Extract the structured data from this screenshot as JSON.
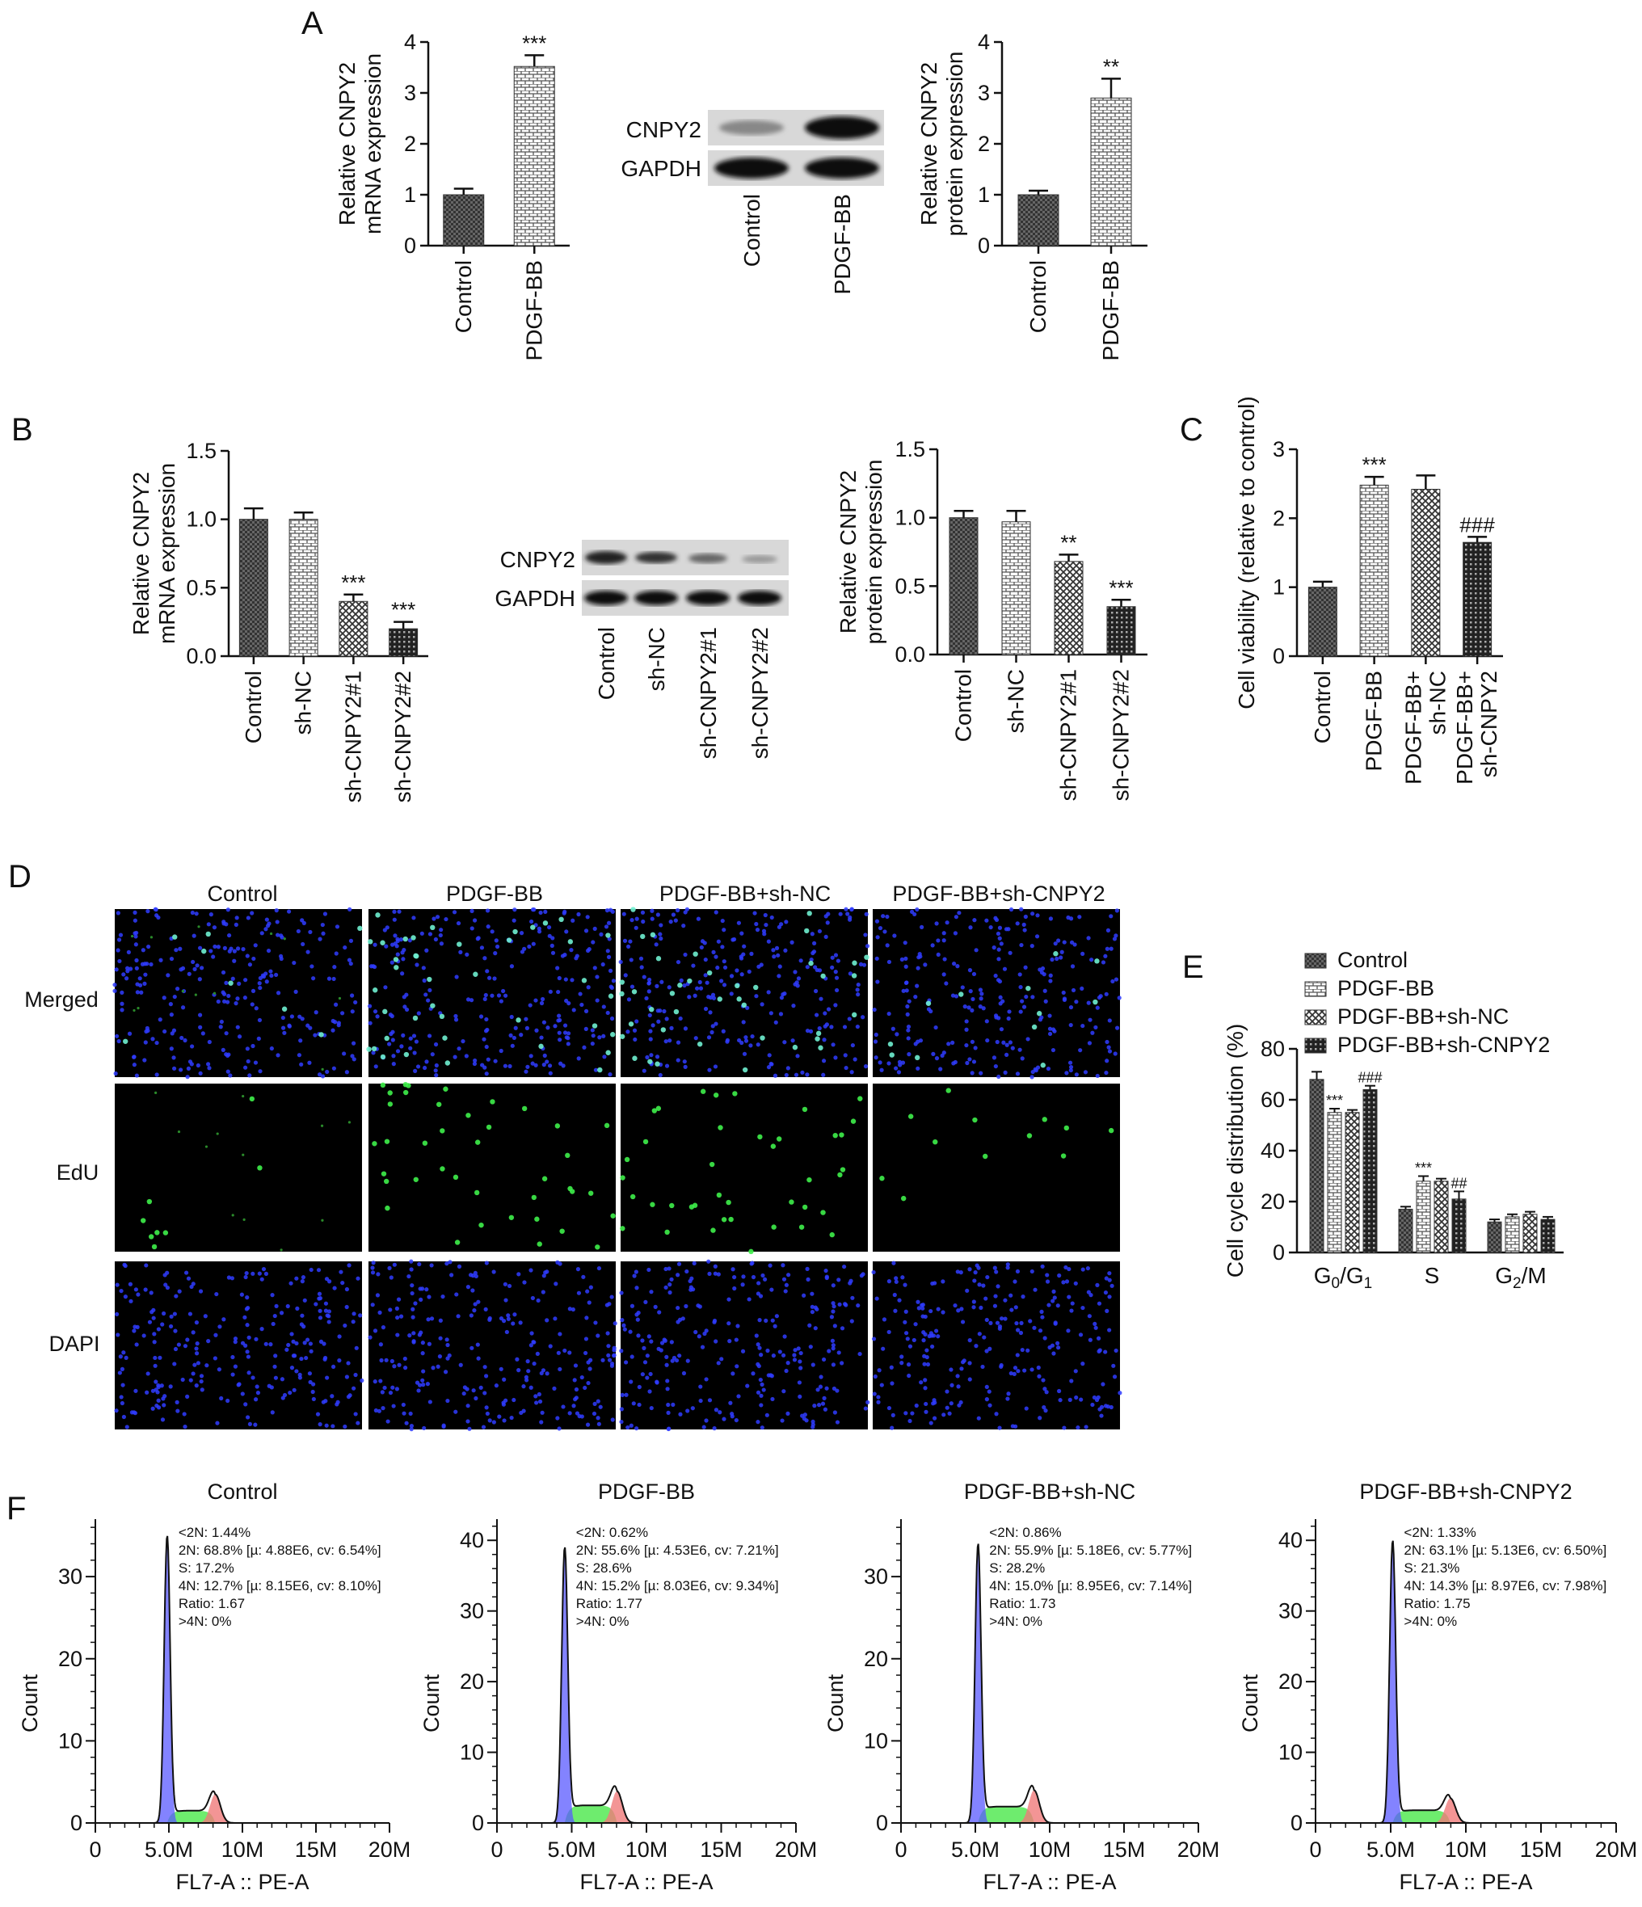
{
  "panel_labels": [
    "A",
    "B",
    "C",
    "D",
    "E",
    "F"
  ],
  "blot_A": {
    "proteins": [
      "CNPY2",
      "GAPDH"
    ],
    "lanes": [
      "Control",
      "PDGF-BB"
    ]
  },
  "blot_B": {
    "proteins": [
      "CNPY2",
      "GAPDH"
    ],
    "lanes": [
      "Control",
      "sh-NC",
      "sh-CNPY2#1",
      "sh-CNPY2#2"
    ]
  },
  "microscopy_D": {
    "columns": [
      "Control",
      "PDGF-BB",
      "PDGF-BB+sh-NC",
      "PDGF-BB+sh-CNPY2"
    ],
    "rows": [
      "Merged",
      "EdU",
      "DAPI"
    ]
  },
  "chart_data": [
    {
      "id": "A1",
      "type": "bar",
      "ylabel": "Relative CNPY2\nmRNA expression",
      "categories": [
        "Control",
        "PDGF-BB"
      ],
      "values": [
        1.0,
        3.52
      ],
      "errors": [
        0.12,
        0.22
      ],
      "annotations": [
        "",
        "***"
      ],
      "ylim": [
        0,
        4
      ],
      "yticks": [
        "0",
        "1",
        "2",
        "3",
        "4"
      ]
    },
    {
      "id": "A2",
      "type": "bar",
      "ylabel": "Relative CNPY2\nprotein expression",
      "categories": [
        "Control",
        "PDGF-BB"
      ],
      "values": [
        1.0,
        2.9
      ],
      "errors": [
        0.08,
        0.38
      ],
      "annotations": [
        "",
        "**"
      ],
      "ylim": [
        0,
        4
      ],
      "yticks": [
        "0",
        "1",
        "2",
        "3",
        "4"
      ]
    },
    {
      "id": "B1",
      "type": "bar",
      "ylabel": "Relative CNPY2\nmRNA expression",
      "categories": [
        "Control",
        "sh-NC",
        "sh-CNPY2#1",
        "sh-CNPY2#2"
      ],
      "values": [
        1.0,
        1.0,
        0.4,
        0.2
      ],
      "errors": [
        0.08,
        0.05,
        0.05,
        0.05
      ],
      "annotations": [
        "",
        "",
        "***",
        "***"
      ],
      "ylim": [
        0,
        1.5
      ],
      "yticks": [
        "0.0",
        "0.5",
        "1.0",
        "1.5"
      ]
    },
    {
      "id": "B2",
      "type": "bar",
      "ylabel": "Relative CNPY2\nprotein expression",
      "categories": [
        "Control",
        "sh-NC",
        "sh-CNPY2#1",
        "sh-CNPY2#2"
      ],
      "values": [
        1.0,
        0.97,
        0.68,
        0.35
      ],
      "errors": [
        0.05,
        0.08,
        0.05,
        0.05
      ],
      "annotations": [
        "",
        "",
        "**",
        "***"
      ],
      "ylim": [
        0,
        1.5
      ],
      "yticks": [
        "0.0",
        "0.5",
        "1.0",
        "1.5"
      ]
    },
    {
      "id": "C",
      "type": "bar",
      "ylabel": "Cell viability (relative to control)",
      "categories": [
        "Control",
        "PDGF-BB",
        "PDGF-BB+\nsh-NC",
        "PDGF-BB+\nsh-CNPY2"
      ],
      "values": [
        1.0,
        2.48,
        2.42,
        1.65
      ],
      "errors": [
        0.08,
        0.12,
        0.2,
        0.08
      ],
      "annotations": [
        "",
        "***",
        "",
        "###"
      ],
      "ylim": [
        0,
        3
      ],
      "yticks": [
        "0",
        "1",
        "2",
        "3"
      ]
    },
    {
      "id": "E",
      "type": "bar",
      "ylabel": "Cell cycle distribution (%)",
      "categories": [
        "G0/G1",
        "S",
        "G2/M"
      ],
      "series": [
        {
          "name": "Control",
          "values": [
            68,
            17,
            12
          ],
          "errors": [
            3,
            1,
            1
          ]
        },
        {
          "name": "PDGF-BB",
          "values": [
            55,
            28,
            14
          ],
          "errors": [
            1.5,
            2,
            1
          ]
        },
        {
          "name": "PDGF-BB+sh-NC",
          "values": [
            55,
            28,
            15
          ],
          "errors": [
            1,
            1,
            1
          ]
        },
        {
          "name": "PDGF-BB+sh-CNPY2",
          "values": [
            64,
            21,
            13
          ],
          "errors": [
            1.5,
            3,
            1
          ]
        }
      ],
      "annotations": [
        [
          "",
          "***",
          "",
          "###"
        ],
        [
          "",
          "***",
          "",
          "##"
        ],
        [
          "",
          "",
          "",
          ""
        ]
      ],
      "ylim": [
        0,
        80
      ],
      "yticks": [
        "0",
        "20",
        "40",
        "60",
        "80"
      ],
      "legend": "top"
    },
    {
      "id": "F1",
      "type": "area",
      "title": "Control",
      "xlabel": "FL7-A :: PE-A",
      "ylabel": "Count",
      "xticks": [
        "0",
        "5.0M",
        "10M",
        "15M",
        "20M"
      ],
      "yticks": [
        "0",
        "10",
        "20",
        "30"
      ],
      "ylim": [
        0,
        37
      ],
      "g1_peak": 4.88,
      "g2_peak": 8.15,
      "g1_height": 35,
      "g2_height": 3.5,
      "s_level": 1.5,
      "stats": [
        "<2N: 1.44%",
        "2N: 68.8% [µ: 4.88E6, cv: 6.54%]",
        "S: 17.2%",
        "4N: 12.7% [µ: 8.15E6, cv: 8.10%]",
        "Ratio: 1.67",
        ">4N: 0%"
      ]
    },
    {
      "id": "F2",
      "type": "area",
      "title": "PDGF-BB",
      "xlabel": "FL7-A :: PE-A",
      "ylabel": "Count",
      "xticks": [
        "0",
        "5.0M",
        "10M",
        "15M",
        "20M"
      ],
      "yticks": [
        "0",
        "10",
        "20",
        "30",
        "40"
      ],
      "ylim": [
        0,
        43
      ],
      "g1_peak": 4.53,
      "g2_peak": 8.03,
      "g1_height": 39,
      "g2_height": 4.5,
      "s_level": 2.5,
      "stats": [
        "<2N: 0.62%",
        "2N: 55.6% [µ: 4.53E6, cv: 7.21%]",
        "S: 28.6%",
        "4N: 15.2% [µ: 8.03E6, cv: 9.34%]",
        "Ratio: 1.77",
        ">4N: 0%"
      ]
    },
    {
      "id": "F3",
      "type": "area",
      "title": "PDGF-BB+sh-NC",
      "xlabel": "FL7-A :: PE-A",
      "ylabel": "Count",
      "xticks": [
        "0",
        "5.0M",
        "10M",
        "15M",
        "20M"
      ],
      "yticks": [
        "0",
        "10",
        "20",
        "30"
      ],
      "ylim": [
        0,
        37
      ],
      "g1_peak": 5.18,
      "g2_peak": 8.95,
      "g1_height": 34,
      "g2_height": 4,
      "s_level": 2,
      "stats": [
        "<2N: 0.86%",
        "2N: 55.9% [µ: 5.18E6, cv: 5.77%]",
        "S: 28.2%",
        "4N: 15.0% [µ: 8.95E6, cv: 7.14%]",
        "Ratio: 1.73",
        ">4N: 0%"
      ]
    },
    {
      "id": "F4",
      "type": "area",
      "title": "PDGF-BB+sh-CNPY2",
      "xlabel": "FL7-A :: PE-A",
      "ylabel": "Count",
      "xticks": [
        "0",
        "5.0M",
        "10M",
        "15M",
        "20M"
      ],
      "yticks": [
        "0",
        "10",
        "20",
        "30",
        "40"
      ],
      "ylim": [
        0,
        43
      ],
      "g1_peak": 5.13,
      "g2_peak": 8.97,
      "g1_height": 40,
      "g2_height": 3.5,
      "s_level": 1.8,
      "stats": [
        "<2N: 1.33%",
        "2N: 63.1% [µ: 5.13E6, cv: 6.50%]",
        "S: 21.3%",
        "4N: 14.3% [µ: 8.97E6, cv: 7.98%]",
        "Ratio: 1.75",
        ">4N: 0%"
      ]
    }
  ]
}
